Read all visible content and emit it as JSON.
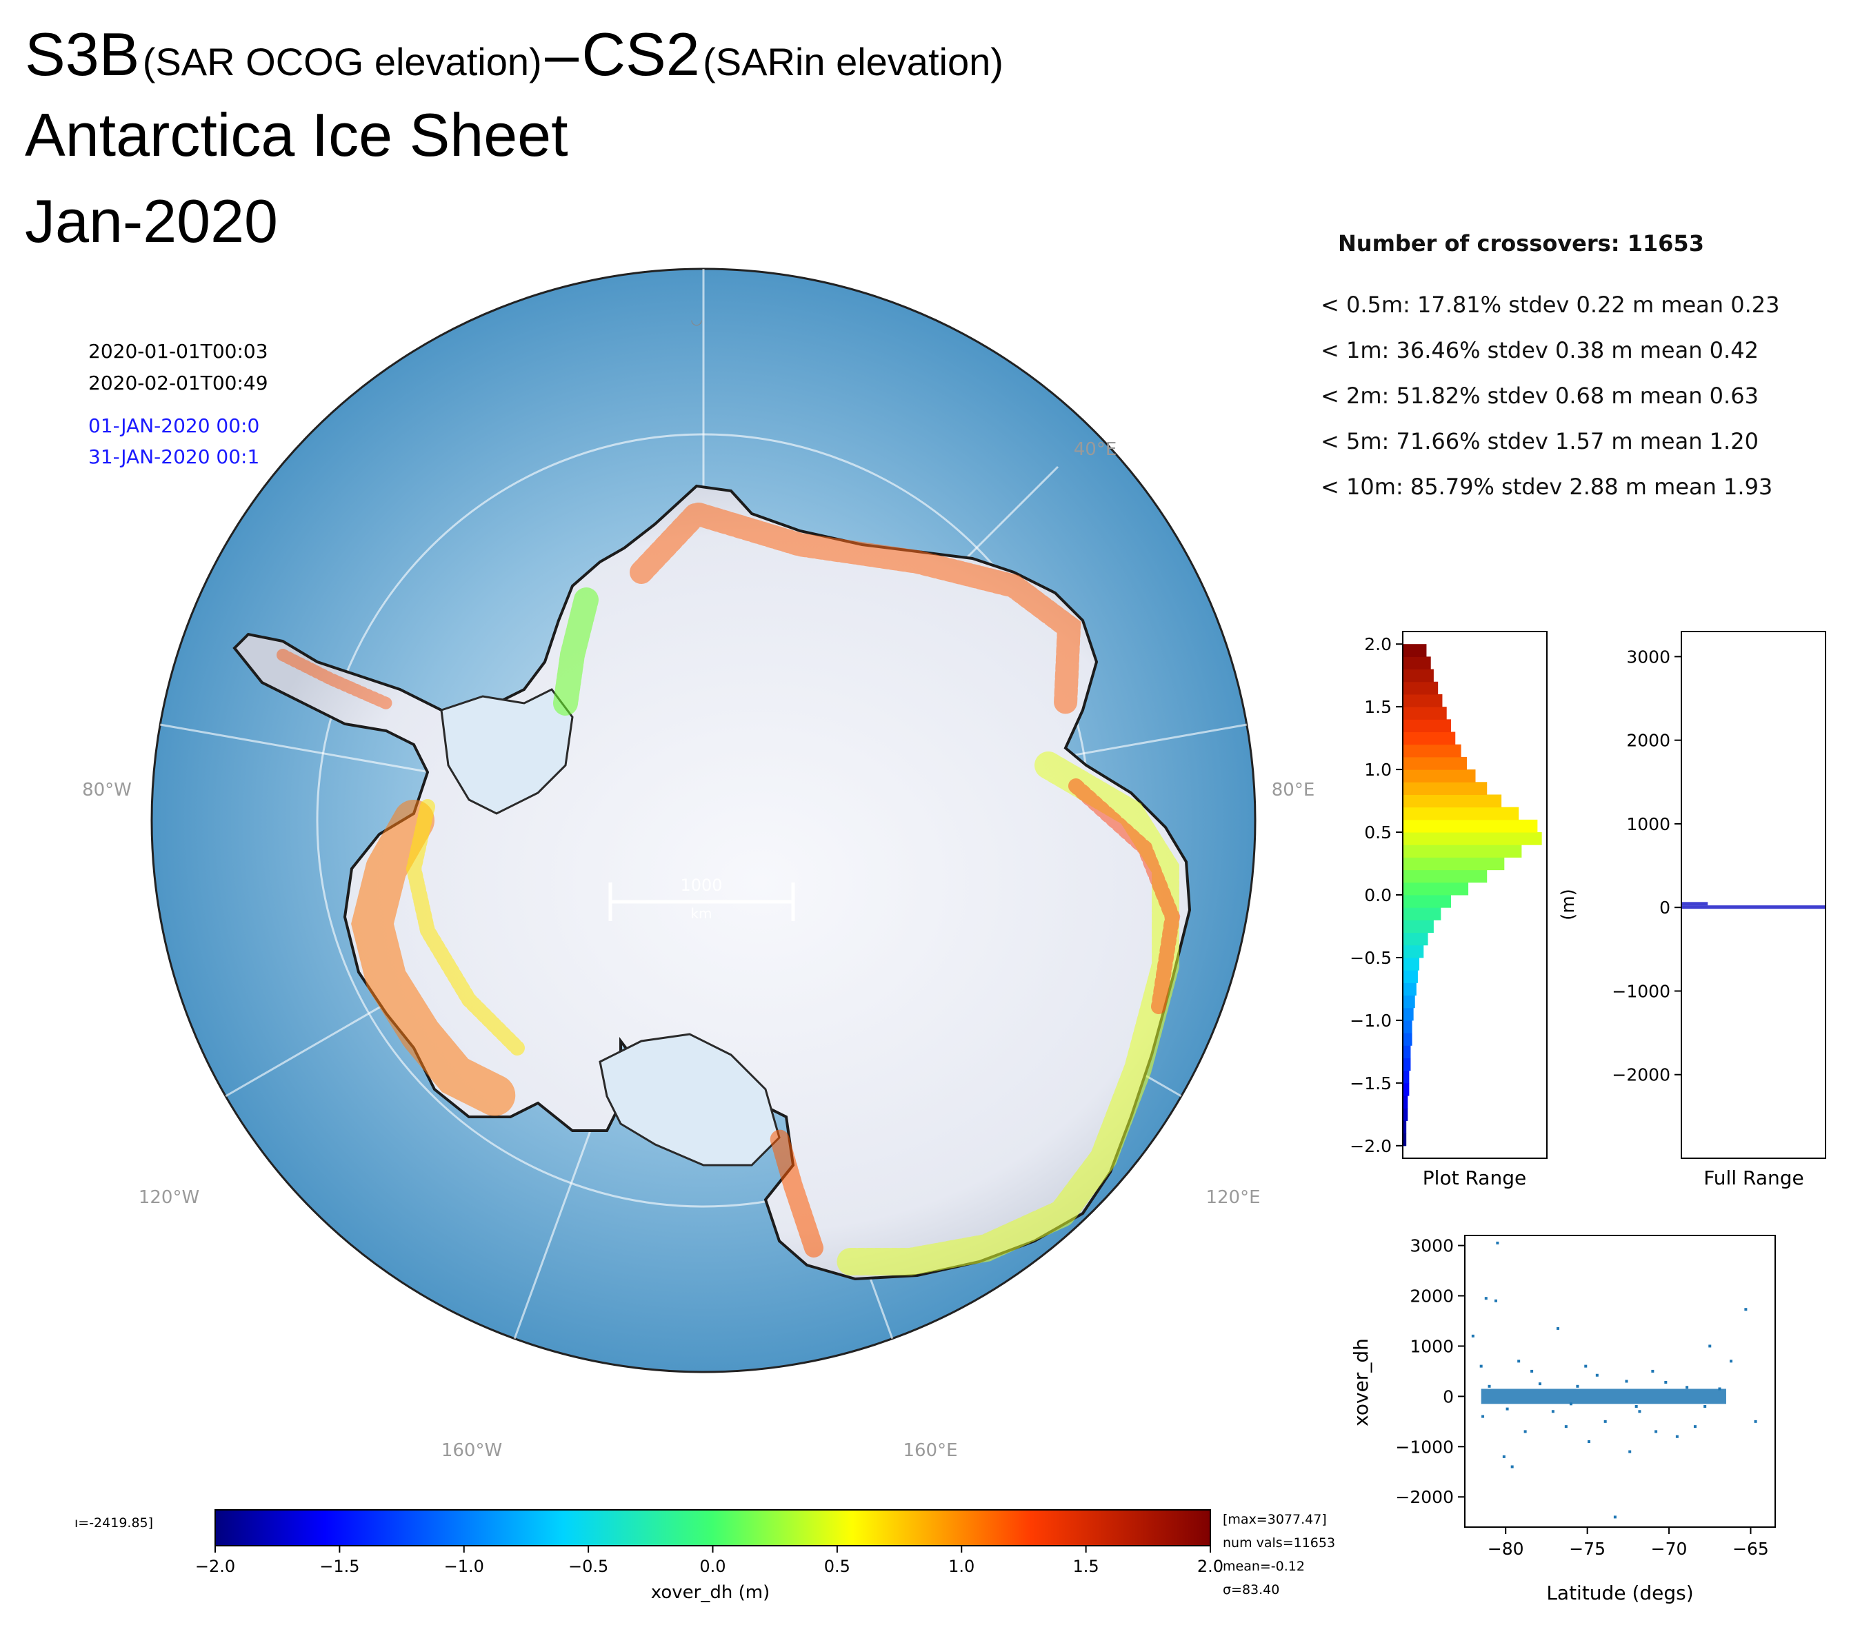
{
  "title": {
    "main1": "S3B",
    "sub1": "(SAR OCOG elevation)",
    "dash": "–",
    "main2": "CS2",
    "sub2": "(SARin elevation)",
    "line2": "Antarctica Ice Sheet",
    "line3": "Jan-2020"
  },
  "timestamps": {
    "start_black": "2020-01-01T00:03",
    "end_black": "2020-02-01T00:49",
    "start_blue": "01-JAN-2020 00:0",
    "end_blue": "31-JAN-2020 00:1"
  },
  "stats": {
    "header": "Number of crossovers: 11653",
    "lines": [
      "< 0.5m: 17.81% stdev 0.22 m mean 0.23",
      "< 1m: 36.46% stdev 0.38 m mean 0.42",
      "< 2m: 51.82% stdev 0.68 m mean 0.63",
      "< 5m: 71.66% stdev 1.57 m mean 1.20",
      "< 10m: 85.79% stdev 2.88 m mean 1.93"
    ]
  },
  "colors": {
    "ocean": "#5c9fcb",
    "ice": "#eef0f7",
    "graticule": "#ffffff",
    "scatter": "#1f77b4",
    "full_range_bar": "#3f3fd0",
    "blue_text": "#1a1aff"
  },
  "chart_data": [
    {
      "type": "map",
      "projection": "south-polar-stereographic",
      "graticule_labels": [
        "40°E",
        "80°E",
        "120°E",
        "160°E",
        "160°W",
        "120°W",
        "80°W"
      ],
      "scale_bar": {
        "value": "1000",
        "unit": "km"
      },
      "colormap": "jet",
      "value_range": [
        -2.0,
        2.0
      ]
    },
    {
      "type": "colorbar",
      "xlabel": "xover_dh (m)",
      "ticks": [
        "−2.0",
        "−1.5",
        "−1.0",
        "−0.5",
        "0.0",
        "0.5",
        "1.0",
        "1.5",
        "2.0"
      ],
      "range": [
        -2.0,
        2.0
      ],
      "left_note": "ı=-2419.85]",
      "right_notes": [
        "[max=3077.47]",
        "num vals=11653",
        "mean=-0.12",
        "σ=83.40"
      ]
    },
    {
      "type": "bar",
      "orientation": "horizontal",
      "xlabel": "Plot Range",
      "ylim": [
        -2.1,
        2.1
      ],
      "yticks": [
        "2.0",
        "1.5",
        "1.0",
        "0.5",
        "0.0",
        "−0.5",
        "−1.0",
        "−1.5",
        "−2.0"
      ],
      "bins": [
        {
          "y": -1.95,
          "count": 2
        },
        {
          "y": -1.85,
          "count": 2
        },
        {
          "y": -1.75,
          "count": 3
        },
        {
          "y": -1.65,
          "count": 3
        },
        {
          "y": -1.55,
          "count": 4
        },
        {
          "y": -1.45,
          "count": 4
        },
        {
          "y": -1.35,
          "count": 5
        },
        {
          "y": -1.25,
          "count": 5
        },
        {
          "y": -1.15,
          "count": 6
        },
        {
          "y": -1.05,
          "count": 6
        },
        {
          "y": -0.95,
          "count": 7
        },
        {
          "y": -0.85,
          "count": 8
        },
        {
          "y": -0.75,
          "count": 9
        },
        {
          "y": -0.65,
          "count": 10
        },
        {
          "y": -0.55,
          "count": 11
        },
        {
          "y": -0.45,
          "count": 14
        },
        {
          "y": -0.35,
          "count": 17
        },
        {
          "y": -0.25,
          "count": 21
        },
        {
          "y": -0.15,
          "count": 26
        },
        {
          "y": -0.05,
          "count": 33
        },
        {
          "y": 0.05,
          "count": 45
        },
        {
          "y": 0.15,
          "count": 58
        },
        {
          "y": 0.25,
          "count": 70
        },
        {
          "y": 0.35,
          "count": 82
        },
        {
          "y": 0.45,
          "count": 96
        },
        {
          "y": 0.55,
          "count": 93
        },
        {
          "y": 0.65,
          "count": 80
        },
        {
          "y": 0.75,
          "count": 68
        },
        {
          "y": 0.85,
          "count": 58
        },
        {
          "y": 0.95,
          "count": 50
        },
        {
          "y": 1.05,
          "count": 44
        },
        {
          "y": 1.15,
          "count": 40
        },
        {
          "y": 1.25,
          "count": 36
        },
        {
          "y": 1.35,
          "count": 33
        },
        {
          "y": 1.45,
          "count": 30
        },
        {
          "y": 1.55,
          "count": 27
        },
        {
          "y": 1.65,
          "count": 24
        },
        {
          "y": 1.75,
          "count": 21
        },
        {
          "y": 1.85,
          "count": 19
        },
        {
          "y": 1.95,
          "count": 16
        }
      ],
      "xlim": [
        0,
        100
      ]
    },
    {
      "type": "bar",
      "orientation": "horizontal",
      "xlabel": "Full Range",
      "ylabel": "(m)",
      "ylim": [
        -3000,
        3300
      ],
      "yticks": [
        "3000",
        "2000",
        "1000",
        "0",
        "−1000",
        "−2000"
      ],
      "ytick_values": [
        3000,
        2000,
        1000,
        0,
        -1000,
        -2000
      ],
      "bins": [
        {
          "y": 0,
          "count": 100
        },
        {
          "y": 40,
          "count": 18
        }
      ],
      "xlim": [
        0,
        100
      ]
    },
    {
      "type": "scatter",
      "xlabel": "Latitude (degs)",
      "ylabel": "xover_dh",
      "xlim": [
        -82.5,
        -63.5
      ],
      "ylim": [
        -2600,
        3200
      ],
      "xticks": [
        "−80",
        "−75",
        "−70",
        "−65"
      ],
      "xtick_values": [
        -80,
        -75,
        -70,
        -65
      ],
      "yticks": [
        "3000",
        "2000",
        "1000",
        "0",
        "−1000",
        "−2000"
      ],
      "ytick_values": [
        3000,
        2000,
        1000,
        0,
        -1000,
        -2000
      ],
      "points": [
        [
          -80.5,
          3050
        ],
        [
          -81.2,
          1950
        ],
        [
          -80.6,
          1900
        ],
        [
          -82.0,
          1200
        ],
        [
          -79.2,
          700
        ],
        [
          -81.5,
          600
        ],
        [
          -78.4,
          500
        ],
        [
          -76.8,
          1350
        ],
        [
          -75.1,
          600
        ],
        [
          -74.4,
          420
        ],
        [
          -72.6,
          300
        ],
        [
          -71.0,
          500
        ],
        [
          -67.5,
          1000
        ],
        [
          -65.3,
          1730
        ],
        [
          -66.2,
          700
        ],
        [
          -64.7,
          -500
        ],
        [
          -67.8,
          -200
        ],
        [
          -69.5,
          -800
        ],
        [
          -70.8,
          -700
        ],
        [
          -72.4,
          -1100
        ],
        [
          -73.3,
          -2400
        ],
        [
          -74.9,
          -900
        ],
        [
          -76.3,
          -600
        ],
        [
          -77.1,
          -300
        ],
        [
          -79.6,
          -1400
        ],
        [
          -80.1,
          -1200
        ],
        [
          -81.4,
          -400
        ],
        [
          -78.8,
          -700
        ],
        [
          -73.9,
          -500
        ],
        [
          -71.8,
          -300
        ],
        [
          -68.4,
          -600
        ],
        [
          -75.6,
          200
        ],
        [
          -77.9,
          250
        ],
        [
          -79.9,
          -250
        ],
        [
          -70.2,
          280
        ],
        [
          -66.9,
          150
        ],
        [
          -81.0,
          200
        ],
        [
          -76.0,
          -150
        ],
        [
          -72.0,
          -200
        ],
        [
          -68.9,
          180
        ]
      ],
      "dense_band": {
        "x_from": -81.5,
        "x_to": -66.5,
        "y_from": -150,
        "y_to": 150
      }
    }
  ]
}
